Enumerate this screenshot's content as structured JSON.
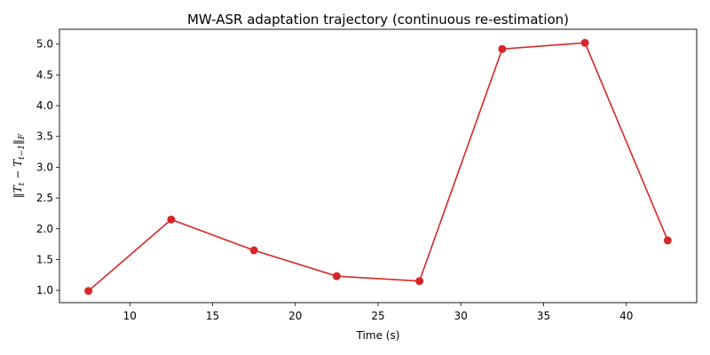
{
  "chart_data": {
    "type": "line",
    "title": "MW-ASR adaptation trajectory (continuous re-estimation)",
    "xlabel": "Time (s)",
    "ylabel": "‖T_t − T_{t−1}‖_F",
    "xlim": [
      5.75,
      44.25
    ],
    "ylim": [
      0.8,
      5.24
    ],
    "xticks": [
      10,
      15,
      20,
      25,
      30,
      35,
      40
    ],
    "yticks": [
      1.0,
      1.5,
      2.0,
      2.5,
      3.0,
      3.5,
      4.0,
      4.5,
      5.0
    ],
    "xtick_labels": [
      "10",
      "15",
      "20",
      "25",
      "30",
      "35",
      "40"
    ],
    "ytick_labels": [
      "1.0",
      "1.5",
      "2.0",
      "2.5",
      "3.0",
      "3.5",
      "4.0",
      "4.5",
      "5.0"
    ],
    "grid": false,
    "series": [
      {
        "color": "#d62728",
        "marker": "circle",
        "x": [
          7.5,
          12.5,
          17.5,
          22.5,
          27.5,
          32.5,
          37.5,
          42.5
        ],
        "y": [
          0.99,
          2.15,
          1.65,
          1.23,
          1.15,
          4.92,
          5.02,
          1.81
        ]
      }
    ]
  }
}
